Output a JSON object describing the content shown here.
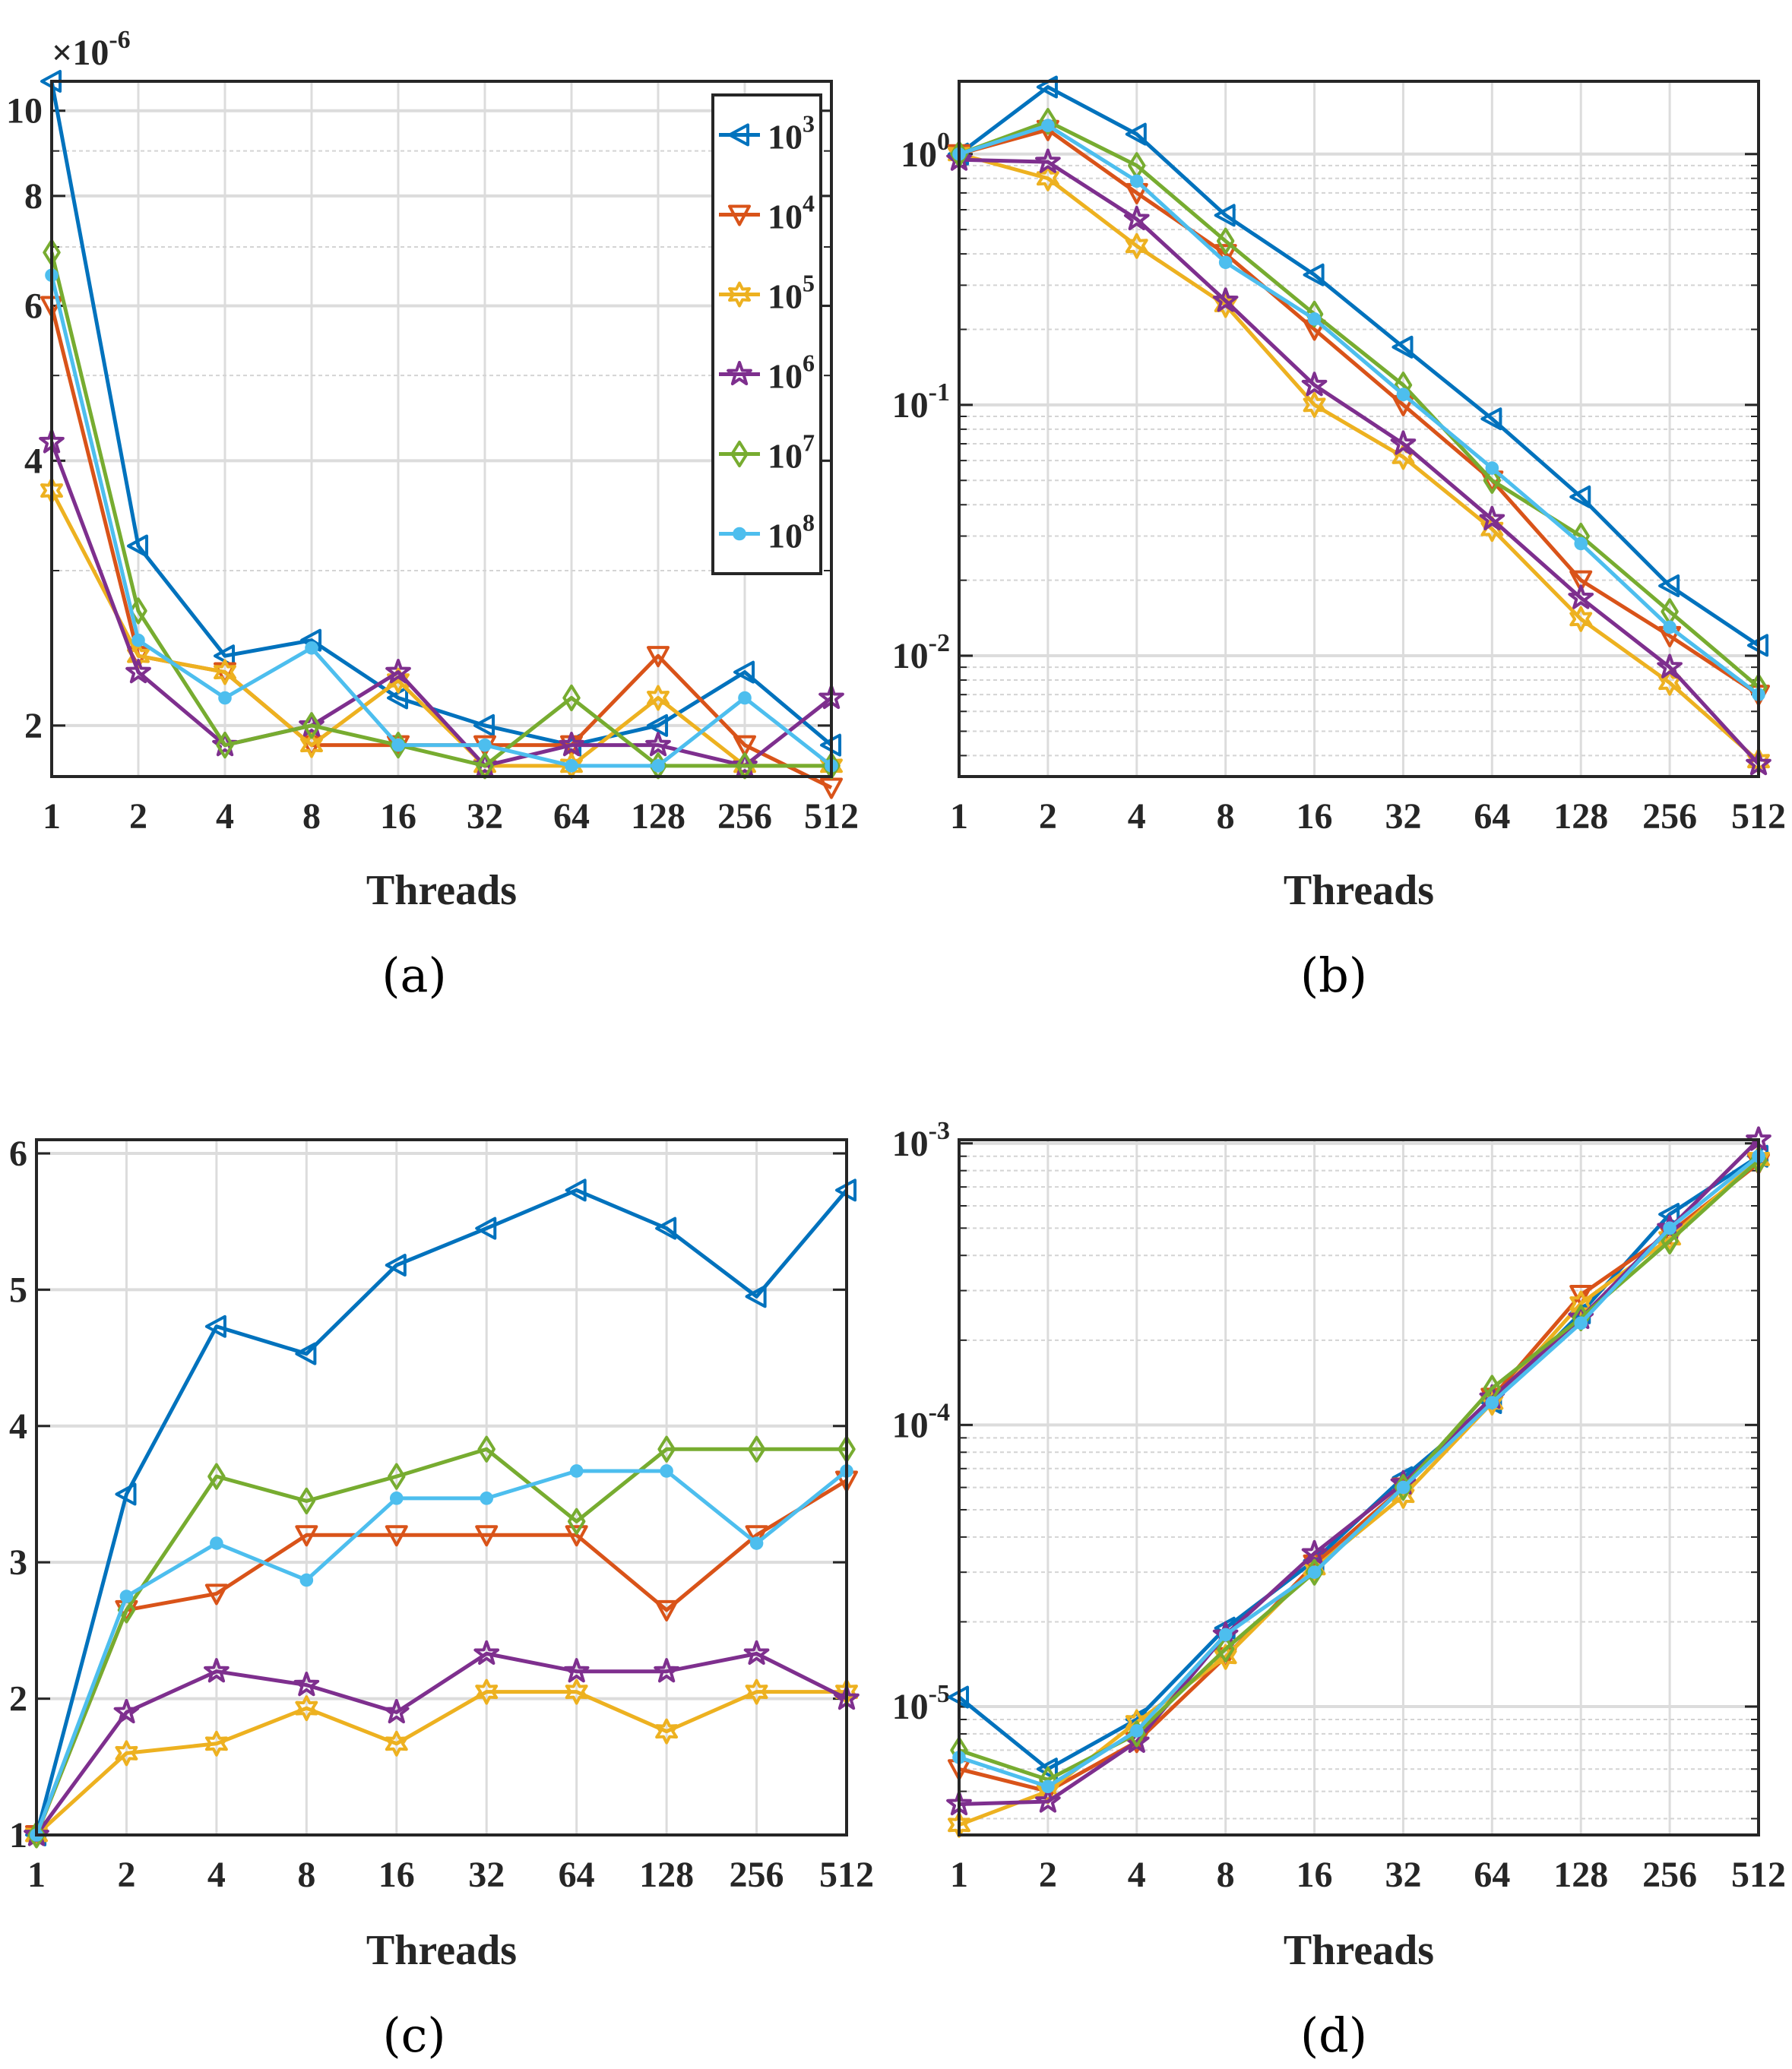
{
  "legend": {
    "entries": [
      {
        "base": "10",
        "exp": "3",
        "color": "#0072BD",
        "marker": "triangle-left"
      },
      {
        "base": "10",
        "exp": "4",
        "color": "#D95319",
        "marker": "triangle-down"
      },
      {
        "base": "10",
        "exp": "5",
        "color": "#EDB120",
        "marker": "hexagram"
      },
      {
        "base": "10",
        "exp": "6",
        "color": "#7E2F8E",
        "marker": "pentagram"
      },
      {
        "base": "10",
        "exp": "7",
        "color": "#77AC30",
        "marker": "diamond"
      },
      {
        "base": "10",
        "exp": "8",
        "color": "#4DBEEE",
        "marker": "circle"
      }
    ]
  },
  "chart_data": [
    {
      "panel": "a",
      "type": "line",
      "yscale": "log",
      "caption": "(a)",
      "xlabel": "Threads",
      "ylabel": "",
      "multiplier": {
        "prefix": "×10",
        "exp": "-6"
      },
      "categories": [
        "1",
        "2",
        "4",
        "8",
        "16",
        "32",
        "64",
        "128",
        "256",
        "512"
      ],
      "ylim": [
        1.75,
        10.8
      ],
      "yticks": [
        {
          "value": 2,
          "label": "2"
        },
        {
          "value": 4,
          "label": "4"
        },
        {
          "value": 6,
          "label": "6"
        },
        {
          "value": 8,
          "label": "8"
        },
        {
          "value": 10,
          "label": "10"
        }
      ],
      "legend_position": "top-right",
      "grid": true,
      "series": [
        {
          "name": "10^3",
          "values": [
            10.8,
            3.2,
            2.4,
            2.5,
            2.15,
            2.0,
            1.9,
            2.0,
            2.3,
            1.9
          ]
        },
        {
          "name": "10^4",
          "values": [
            6.0,
            2.4,
            2.3,
            1.9,
            1.9,
            1.9,
            1.9,
            2.4,
            1.9,
            1.7
          ]
        },
        {
          "name": "10^5",
          "values": [
            3.7,
            2.4,
            2.3,
            1.9,
            2.25,
            1.8,
            1.8,
            2.15,
            1.8,
            1.8
          ]
        },
        {
          "name": "10^6",
          "values": [
            4.2,
            2.3,
            1.9,
            2.0,
            2.3,
            1.8,
            1.9,
            1.9,
            1.8,
            2.15
          ]
        },
        {
          "name": "10^7",
          "values": [
            6.9,
            2.7,
            1.9,
            2.0,
            1.9,
            1.8,
            2.15,
            1.8,
            1.8,
            1.8
          ]
        },
        {
          "name": "10^8",
          "values": [
            6.5,
            2.5,
            2.15,
            2.45,
            1.9,
            1.9,
            1.8,
            1.8,
            2.15,
            1.8
          ]
        }
      ]
    },
    {
      "panel": "b",
      "type": "line",
      "yscale": "log",
      "caption": "(b)",
      "xlabel": "Threads",
      "ylabel": "",
      "categories": [
        "1",
        "2",
        "4",
        "8",
        "16",
        "32",
        "64",
        "128",
        "256",
        "512"
      ],
      "ylim": [
        0.0033,
        1.95
      ],
      "yticks": [
        {
          "value": 1,
          "base": "10",
          "exp": "0"
        },
        {
          "value": 0.1,
          "base": "10",
          "exp": "-1"
        },
        {
          "value": 0.01,
          "base": "10",
          "exp": "-2"
        }
      ],
      "grid": true,
      "series": [
        {
          "name": "10^3",
          "values": [
            1.0,
            1.85,
            1.2,
            0.57,
            0.33,
            0.17,
            0.088,
            0.043,
            0.019,
            0.011
          ]
        },
        {
          "name": "10^4",
          "values": [
            1.0,
            1.25,
            0.7,
            0.4,
            0.2,
            0.1,
            0.05,
            0.02,
            0.012,
            0.007
          ]
        },
        {
          "name": "10^5",
          "values": [
            1.0,
            0.8,
            0.43,
            0.25,
            0.1,
            0.062,
            0.032,
            0.014,
            0.0078,
            0.0038
          ]
        },
        {
          "name": "10^6",
          "values": [
            0.95,
            0.93,
            0.55,
            0.26,
            0.12,
            0.07,
            0.035,
            0.017,
            0.009,
            0.0037
          ]
        },
        {
          "name": "10^7",
          "values": [
            1.0,
            1.35,
            0.9,
            0.45,
            0.23,
            0.12,
            0.05,
            0.03,
            0.015,
            0.0075
          ]
        },
        {
          "name": "10^8",
          "values": [
            1.0,
            1.3,
            0.78,
            0.37,
            0.22,
            0.11,
            0.056,
            0.028,
            0.013,
            0.007
          ]
        }
      ]
    },
    {
      "panel": "c",
      "type": "line",
      "yscale": "linear",
      "caption": "(c)",
      "xlabel": "Threads",
      "ylabel": "",
      "categories": [
        "1",
        "2",
        "4",
        "8",
        "16",
        "32",
        "64",
        "128",
        "256",
        "512"
      ],
      "ylim": [
        1,
        6.1
      ],
      "yticks": [
        {
          "value": 1,
          "label": "1"
        },
        {
          "value": 2,
          "label": "2"
        },
        {
          "value": 3,
          "label": "3"
        },
        {
          "value": 4,
          "label": "4"
        },
        {
          "value": 5,
          "label": "5"
        },
        {
          "value": 6,
          "label": "6"
        }
      ],
      "grid": true,
      "series": [
        {
          "name": "10^3",
          "values": [
            1.0,
            3.5,
            4.73,
            4.53,
            5.18,
            5.45,
            5.73,
            5.45,
            4.95,
            5.73
          ]
        },
        {
          "name": "10^4",
          "values": [
            1.0,
            2.65,
            2.77,
            3.2,
            3.2,
            3.2,
            3.2,
            2.65,
            3.2,
            3.6
          ]
        },
        {
          "name": "10^5",
          "values": [
            1.0,
            1.6,
            1.67,
            1.93,
            1.67,
            2.05,
            2.05,
            1.76,
            2.05,
            2.05
          ]
        },
        {
          "name": "10^6",
          "values": [
            1.0,
            1.9,
            2.2,
            2.1,
            1.9,
            2.33,
            2.2,
            2.2,
            2.33,
            2.0
          ]
        },
        {
          "name": "10^7",
          "values": [
            1.0,
            2.65,
            3.63,
            3.45,
            3.63,
            3.83,
            3.3,
            3.83,
            3.83,
            3.83
          ]
        },
        {
          "name": "10^8",
          "values": [
            1.0,
            2.75,
            3.14,
            2.87,
            3.47,
            3.47,
            3.67,
            3.67,
            3.14,
            3.67
          ]
        }
      ]
    },
    {
      "panel": "d",
      "type": "line",
      "yscale": "log",
      "caption": "(d)",
      "xlabel": "Threads",
      "ylabel": "",
      "categories": [
        "1",
        "2",
        "4",
        "8",
        "16",
        "32",
        "64",
        "128",
        "256",
        "512"
      ],
      "ylim": [
        3.5e-06,
        0.00103
      ],
      "yticks": [
        {
          "value": 0.001,
          "base": "10",
          "exp": "-3"
        },
        {
          "value": 0.0001,
          "base": "10",
          "exp": "-4"
        },
        {
          "value": 1e-05,
          "base": "10",
          "exp": "-5"
        }
      ],
      "grid": true,
      "series": [
        {
          "name": "10^3",
          "values": [
            1.08e-05,
            6e-06,
            9e-06,
            1.9e-05,
            3.3e-05,
            6.5e-05,
            0.00012,
            0.00025,
            0.00056,
            0.0009
          ]
        },
        {
          "name": "10^4",
          "values": [
            6e-06,
            5e-06,
            7.5e-06,
            1.5e-05,
            3.2e-05,
            6e-05,
            0.000125,
            0.00029,
            0.00048,
            0.00085
          ]
        },
        {
          "name": "10^5",
          "values": [
            3.8e-06,
            5e-06,
            8.8e-06,
            1.5e-05,
            3.1e-05,
            5.6e-05,
            0.00012,
            0.00027,
            0.00046,
            0.00088
          ]
        },
        {
          "name": "10^6",
          "values": [
            4.5e-06,
            4.6e-06,
            7.5e-06,
            1.8e-05,
            3.5e-05,
            6.2e-05,
            0.000125,
            0.00024,
            0.0005,
            0.00103
          ]
        },
        {
          "name": "10^7",
          "values": [
            7e-06,
            5.5e-06,
            8e-06,
            1.6e-05,
            3e-05,
            6e-05,
            0.000135,
            0.00024,
            0.00045,
            0.00087
          ]
        },
        {
          "name": "10^8",
          "values": [
            6.6e-06,
            5.2e-06,
            8.2e-06,
            1.8e-05,
            3e-05,
            6e-05,
            0.00012,
            0.00023,
            0.0005,
            0.0009
          ]
        }
      ]
    }
  ]
}
